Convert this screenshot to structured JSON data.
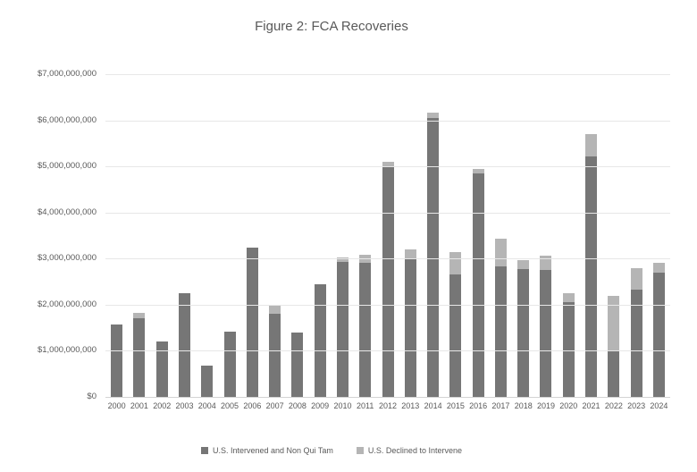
{
  "chart_data": {
    "type": "bar",
    "stacked": true,
    "title": "Figure 2: FCA Recoveries",
    "categories": [
      "2000",
      "2001",
      "2002",
      "2003",
      "2004",
      "2005",
      "2006",
      "2007",
      "2008",
      "2009",
      "2010",
      "2011",
      "2012",
      "2013",
      "2014",
      "2015",
      "2016",
      "2017",
      "2018",
      "2019",
      "2020",
      "2021",
      "2022",
      "2023",
      "2024"
    ],
    "series": [
      {
        "name": "U.S. Intervened and Non Qui Tam",
        "color": "#767676",
        "values": [
          1570000000,
          1700000000,
          1210000000,
          2250000000,
          680000000,
          1420000000,
          3230000000,
          1800000000,
          1400000000,
          2450000000,
          2920000000,
          2900000000,
          5000000000,
          3000000000,
          6050000000,
          2650000000,
          4850000000,
          2830000000,
          2770000000,
          2760000000,
          2050000000,
          5220000000,
          1000000000,
          2320000000,
          2700000000
        ]
      },
      {
        "name": "U.S. Declined to Intervene",
        "color": "#b5b5b5",
        "values": [
          0,
          120000000,
          0,
          0,
          0,
          0,
          0,
          170000000,
          0,
          0,
          100000000,
          180000000,
          100000000,
          200000000,
          120000000,
          500000000,
          100000000,
          600000000,
          200000000,
          300000000,
          200000000,
          480000000,
          1200000000,
          470000000,
          210000000
        ]
      }
    ],
    "ylim": [
      0,
      7000000000
    ],
    "y_tick_interval": 1000000000,
    "y_tick_labels": [
      "$0",
      "$1,000,000,000",
      "$2,000,000,000",
      "$3,000,000,000",
      "$4,000,000,000",
      "$5,000,000,000",
      "$6,000,000,000",
      "$7,000,000,000"
    ],
    "grid": "horizontal",
    "legend_position": "bottom",
    "colors": {
      "text": "#595959",
      "gridline": "#e7e7e7",
      "baseline": "#d4d4d4",
      "background": "#ffffff"
    }
  }
}
